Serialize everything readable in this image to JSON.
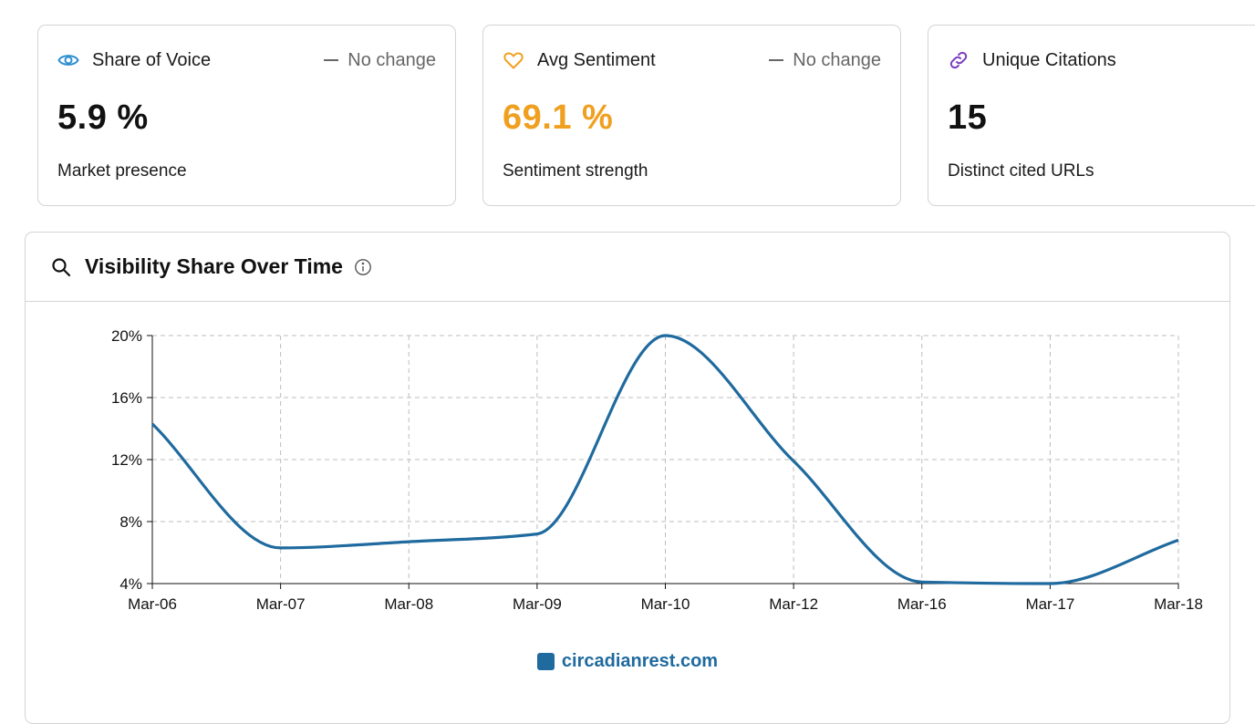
{
  "cards": [
    {
      "title": "Share of Voice",
      "change": "No change",
      "value": "5.9 %",
      "sub": "Market presence",
      "value_color": "#111111",
      "icon": "eye-icon"
    },
    {
      "title": "Avg Sentiment",
      "change": "No change",
      "value": "69.1 %",
      "sub": "Sentiment strength",
      "value_color": "#f0a020",
      "icon": "heart-icon"
    },
    {
      "title": "Unique Citations",
      "change": "",
      "value": "15",
      "sub": "Distinct cited URLs",
      "value_color": "#111111",
      "icon": "link-icon"
    }
  ],
  "panel": {
    "title": "Visibility Share Over Time",
    "icon": "search-icon",
    "info_icon": "info-icon"
  },
  "colors": {
    "series": "#1f6a9e",
    "eye": "#2e8fcf",
    "heart": "#f0a020",
    "link": "#7a3fc0"
  },
  "chart_data": {
    "type": "line",
    "title": "Visibility Share Over Time",
    "categories": [
      "Mar-06",
      "Mar-07",
      "Mar-08",
      "Mar-09",
      "Mar-10",
      "Mar-12",
      "Mar-16",
      "Mar-17",
      "Mar-18"
    ],
    "series": [
      {
        "name": "circadianrest.com",
        "values": [
          14.3,
          6.3,
          6.7,
          7.2,
          20.0,
          11.9,
          4.1,
          4.0,
          6.8
        ]
      }
    ],
    "ylim": [
      4,
      20
    ],
    "yticks": [
      4,
      8,
      12,
      16,
      20
    ],
    "ytick_labels": [
      "4%",
      "8%",
      "12%",
      "16%",
      "20%"
    ],
    "grid": true,
    "legend": "bottom-center"
  }
}
